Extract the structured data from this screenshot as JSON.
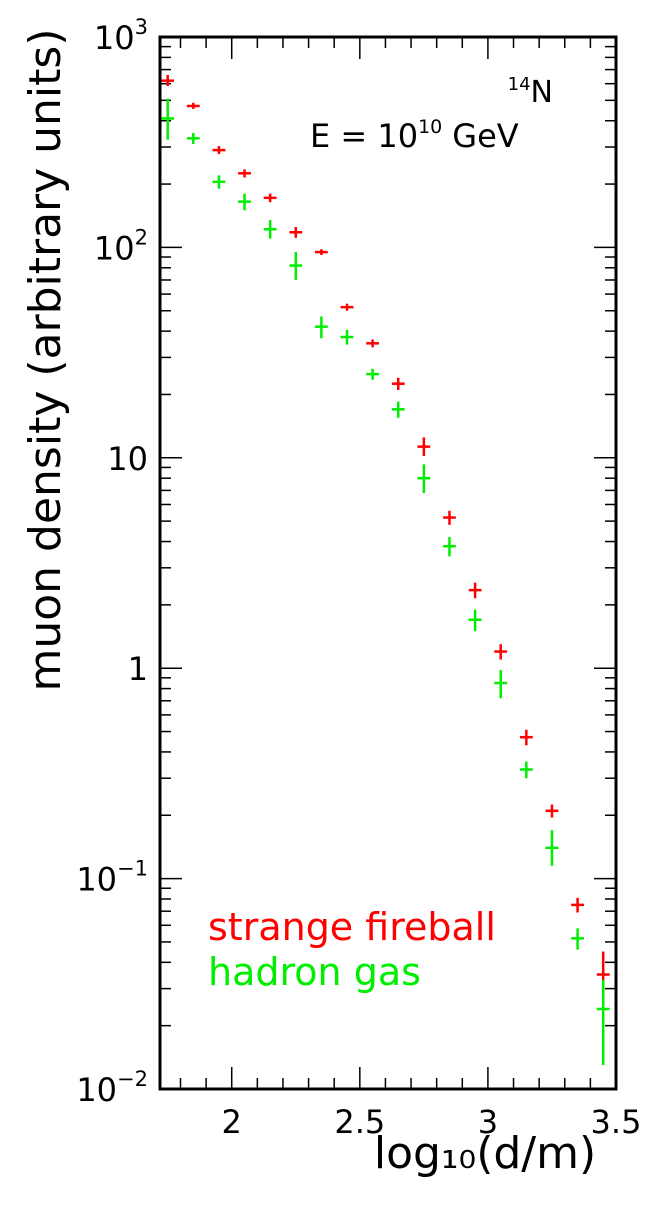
{
  "chart_data": {
    "type": "scatter",
    "title": "",
    "xlabel": "log₁₀(d/m)",
    "ylabel": "muon density (arbitrary units)",
    "xlim": [
      1.72,
      3.5
    ],
    "ylim": [
      0.01,
      1000
    ],
    "yscale": "log",
    "grid": false,
    "x_ticks": [
      {
        "value": 2,
        "label": "2"
      },
      {
        "value": 2.5,
        "label": "2.5"
      },
      {
        "value": 3,
        "label": "3"
      },
      {
        "value": 3.5,
        "label": "3.5"
      }
    ],
    "y_ticks": [
      {
        "value": 1000,
        "base": "10",
        "exp": "3"
      },
      {
        "value": 100,
        "base": "10",
        "exp": "2"
      },
      {
        "value": 10,
        "base": "10",
        "exp": ""
      },
      {
        "value": 1,
        "base": "1",
        "exp": ""
      },
      {
        "value": 0.1,
        "base": "10",
        "exp": "−1"
      },
      {
        "value": 0.01,
        "base": "10",
        "exp": "−2"
      }
    ],
    "annotations": {
      "nucleus_mass": "14",
      "nucleus_symbol": "N",
      "energy_prefix": "E = 10",
      "energy_exp": "10",
      "energy_unit": "GeV"
    },
    "legend_position": "bottom-left",
    "series": [
      {
        "name": "strange fireball",
        "color": "#ff0000",
        "points": [
          {
            "x": 1.75,
            "y": 620,
            "xerr": 0.025,
            "ylo": 585,
            "yhi": 660
          },
          {
            "x": 1.85,
            "y": 470,
            "xerr": 0.025,
            "ylo": 455,
            "yhi": 487
          },
          {
            "x": 1.95,
            "y": 290,
            "xerr": 0.025,
            "ylo": 278,
            "yhi": 303
          },
          {
            "x": 2.05,
            "y": 225,
            "xerr": 0.025,
            "ylo": 215,
            "yhi": 235
          },
          {
            "x": 2.15,
            "y": 172,
            "xerr": 0.025,
            "ylo": 164,
            "yhi": 180
          },
          {
            "x": 2.25,
            "y": 118,
            "xerr": 0.025,
            "ylo": 111,
            "yhi": 125
          },
          {
            "x": 2.35,
            "y": 95,
            "xerr": 0.025,
            "ylo": 92,
            "yhi": 98
          },
          {
            "x": 2.45,
            "y": 52,
            "xerr": 0.025,
            "ylo": 50,
            "yhi": 54
          },
          {
            "x": 2.55,
            "y": 35,
            "xerr": 0.025,
            "ylo": 33.5,
            "yhi": 36.5
          },
          {
            "x": 2.65,
            "y": 22.5,
            "xerr": 0.025,
            "ylo": 21,
            "yhi": 24
          },
          {
            "x": 2.75,
            "y": 11.3,
            "xerr": 0.025,
            "ylo": 10.2,
            "yhi": 12.5
          },
          {
            "x": 2.85,
            "y": 5.2,
            "xerr": 0.025,
            "ylo": 4.8,
            "yhi": 5.6
          },
          {
            "x": 2.95,
            "y": 2.35,
            "xerr": 0.025,
            "ylo": 2.15,
            "yhi": 2.55
          },
          {
            "x": 3.05,
            "y": 1.2,
            "xerr": 0.025,
            "ylo": 1.1,
            "yhi": 1.3
          },
          {
            "x": 3.15,
            "y": 0.47,
            "xerr": 0.025,
            "ylo": 0.43,
            "yhi": 0.51
          },
          {
            "x": 3.25,
            "y": 0.21,
            "xerr": 0.025,
            "ylo": 0.195,
            "yhi": 0.225
          },
          {
            "x": 3.35,
            "y": 0.075,
            "xerr": 0.025,
            "ylo": 0.069,
            "yhi": 0.081
          },
          {
            "x": 3.45,
            "y": 0.035,
            "xerr": 0.025,
            "ylo": 0.027,
            "yhi": 0.045
          }
        ]
      },
      {
        "name": "hadron gas",
        "color": "#00ee00",
        "points": [
          {
            "x": 1.75,
            "y": 410,
            "xerr": 0.025,
            "ylo": 325,
            "yhi": 510
          },
          {
            "x": 1.85,
            "y": 330,
            "xerr": 0.025,
            "ylo": 310,
            "yhi": 350
          },
          {
            "x": 1.95,
            "y": 205,
            "xerr": 0.025,
            "ylo": 190,
            "yhi": 220
          },
          {
            "x": 2.05,
            "y": 165,
            "xerr": 0.025,
            "ylo": 150,
            "yhi": 180
          },
          {
            "x": 2.15,
            "y": 122,
            "xerr": 0.025,
            "ylo": 110,
            "yhi": 135
          },
          {
            "x": 2.25,
            "y": 82,
            "xerr": 0.025,
            "ylo": 70,
            "yhi": 95
          },
          {
            "x": 2.35,
            "y": 42,
            "xerr": 0.025,
            "ylo": 37,
            "yhi": 47
          },
          {
            "x": 2.45,
            "y": 37.5,
            "xerr": 0.025,
            "ylo": 34.5,
            "yhi": 40.5
          },
          {
            "x": 2.55,
            "y": 25,
            "xerr": 0.025,
            "ylo": 23.5,
            "yhi": 26.5
          },
          {
            "x": 2.65,
            "y": 17,
            "xerr": 0.025,
            "ylo": 15.5,
            "yhi": 18.5
          },
          {
            "x": 2.75,
            "y": 8,
            "xerr": 0.025,
            "ylo": 6.8,
            "yhi": 9.3
          },
          {
            "x": 2.85,
            "y": 3.8,
            "xerr": 0.025,
            "ylo": 3.4,
            "yhi": 4.2
          },
          {
            "x": 2.95,
            "y": 1.7,
            "xerr": 0.025,
            "ylo": 1.5,
            "yhi": 1.9
          },
          {
            "x": 3.05,
            "y": 0.85,
            "xerr": 0.025,
            "ylo": 0.72,
            "yhi": 0.98
          },
          {
            "x": 3.15,
            "y": 0.33,
            "xerr": 0.025,
            "ylo": 0.3,
            "yhi": 0.36
          },
          {
            "x": 3.25,
            "y": 0.14,
            "xerr": 0.025,
            "ylo": 0.115,
            "yhi": 0.17
          },
          {
            "x": 3.35,
            "y": 0.052,
            "xerr": 0.025,
            "ylo": 0.046,
            "yhi": 0.058
          },
          {
            "x": 3.45,
            "y": 0.024,
            "xerr": 0.025,
            "ylo": 0.013,
            "yhi": 0.033
          }
        ]
      }
    ]
  }
}
